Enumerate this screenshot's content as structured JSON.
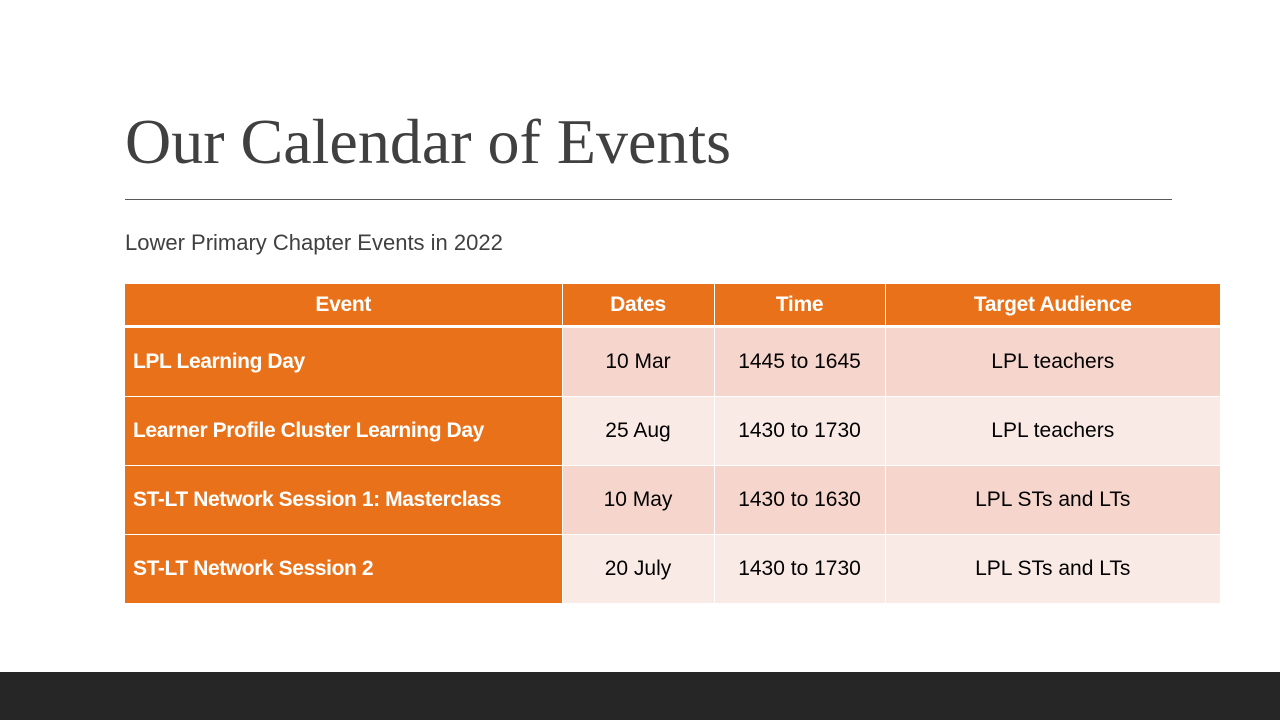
{
  "slide": {
    "title": "Our Calendar of Events",
    "subtitle": "Lower Primary Chapter Events in 2022"
  },
  "table": {
    "headers": {
      "event": "Event",
      "dates": "Dates",
      "time": "Time",
      "audience": "Target Audience"
    },
    "rows": [
      {
        "event": "LPL Learning Day",
        "dates": "10 Mar",
        "time": "1445 to 1645",
        "audience": "LPL teachers"
      },
      {
        "event": "Learner Profile Cluster Learning Day",
        "dates": "25 Aug",
        "time": "1430 to 1730",
        "audience": "LPL teachers"
      },
      {
        "event": "ST-LT Network Session 1: Masterclass",
        "dates": "10 May",
        "time": "1430 to 1630",
        "audience": "LPL STs and LTs"
      },
      {
        "event": "ST-LT Network Session 2",
        "dates": "20 July",
        "time": "1430 to 1730",
        "audience": "LPL STs and LTs"
      }
    ]
  },
  "colors": {
    "accent": "#E97119",
    "row_tint_dark": "#F6D5CC",
    "row_tint_light": "#FAEAE6",
    "title_text": "#404040",
    "footer": "#262626"
  }
}
